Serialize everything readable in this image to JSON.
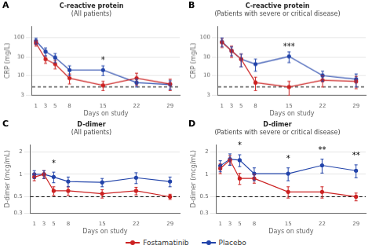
{
  "chart_data": [
    {
      "type": "line",
      "panel_label": "A",
      "title": "C-reactive protein",
      "subtitle": "(All patients)",
      "xlabel": "Days on study",
      "ylabel": "CRP (mg/L)",
      "x": [
        1,
        3,
        5,
        8,
        15,
        22,
        29
      ],
      "series": [
        {
          "name": "Fostamatinib",
          "color": "#cc2222",
          "values": [
            72,
            27,
            20,
            8.5,
            5.5,
            8.5,
            6.0
          ],
          "errors": [
            12,
            6,
            5,
            2.5,
            1.5,
            3,
            2
          ]
        },
        {
          "name": "Placebo",
          "color": "#2244aa",
          "values": [
            82,
            43,
            30,
            14,
            14,
            6.5,
            5.8
          ],
          "errors": [
            15,
            10,
            8,
            4,
            4,
            1.5,
            1.5
          ]
        }
      ],
      "annotations": [
        {
          "x": 15,
          "text": "*"
        }
      ],
      "reference_line": 5,
      "log": "y",
      "xlim": [
        0.2,
        31
      ],
      "xticks": [
        1,
        3,
        5,
        8,
        15,
        22,
        29
      ],
      "ylim": [
        3,
        200
      ],
      "yticks": [
        3,
        10,
        30,
        100
      ],
      "grid": true,
      "legend": "bottom"
    },
    {
      "type": "line",
      "panel_label": "B",
      "title": "C-reactive protein",
      "subtitle": "(Patients with severe or critical disease)",
      "xlabel": "Days on study",
      "ylabel": "CRP (mg/L)",
      "x": [
        1,
        3,
        5,
        8,
        15,
        22,
        29
      ],
      "series": [
        {
          "name": "Fostamatinib",
          "color": "#cc2222",
          "values": [
            75,
            45,
            27,
            6.5,
            5.0,
            7.5,
            7.0
          ],
          "errors": [
            20,
            15,
            10,
            2.5,
            2,
            2.5,
            2.5
          ]
        },
        {
          "name": "Placebo",
          "color": "#2244aa",
          "values": [
            78,
            45,
            27,
            20,
            32,
            10,
            8.0
          ],
          "errors": [
            20,
            12,
            10,
            7,
            10,
            3,
            3
          ]
        }
      ],
      "annotations": [
        {
          "x": 15,
          "text": "***"
        }
      ],
      "reference_line": 5,
      "log": "y",
      "xlim": [
        0.2,
        31
      ],
      "xticks": [
        1,
        3,
        5,
        8,
        15,
        22,
        29
      ],
      "ylim": [
        3,
        200
      ],
      "yticks": [
        3,
        10,
        30,
        100
      ],
      "grid": true,
      "legend": "bottom"
    },
    {
      "type": "line",
      "panel_label": "C",
      "title": "D-dimer",
      "subtitle": "(All patients)",
      "xlabel": "Days on study",
      "ylabel": "D-dimer (mcg/mL)",
      "x": [
        1,
        3,
        5,
        8,
        15,
        22,
        29
      ],
      "series": [
        {
          "name": "Fostamatinib",
          "color": "#cc2222",
          "values": [
            0.92,
            1.0,
            0.6,
            0.6,
            0.55,
            0.6,
            0.5
          ],
          "errors": [
            0.1,
            0.12,
            0.08,
            0.08,
            0.07,
            0.07,
            0.04
          ]
        },
        {
          "name": "Placebo",
          "color": "#2244aa",
          "values": [
            1.0,
            1.0,
            0.92,
            0.8,
            0.78,
            0.9,
            0.8
          ],
          "errors": [
            0.12,
            0.12,
            0.15,
            0.12,
            0.1,
            0.15,
            0.12
          ]
        }
      ],
      "annotations": [
        {
          "x": 5,
          "text": "*"
        }
      ],
      "reference_line": 0.5,
      "log": "y",
      "xlim": [
        0.2,
        31
      ],
      "xticks": [
        1,
        3,
        5,
        8,
        15,
        22,
        29
      ],
      "ylim": [
        0.3,
        2.5
      ],
      "yticks": [
        0.3,
        0.5,
        1,
        2
      ],
      "grid": true,
      "legend": "bottom"
    },
    {
      "type": "line",
      "panel_label": "D",
      "title": "D-dimer",
      "subtitle": "(Patients with severe or critical disease)",
      "xlabel": "Days on study",
      "ylabel": "D-dimer (mcg/mL)",
      "x": [
        1,
        3,
        5,
        8,
        15,
        22,
        29
      ],
      "series": [
        {
          "name": "Fostamatinib",
          "color": "#cc2222",
          "values": [
            1.2,
            1.55,
            0.88,
            0.88,
            0.58,
            0.58,
            0.5
          ],
          "errors": [
            0.18,
            0.22,
            0.15,
            0.12,
            0.1,
            0.1,
            0.06
          ]
        },
        {
          "name": "Placebo",
          "color": "#2244aa",
          "values": [
            1.3,
            1.6,
            1.55,
            1.02,
            1.02,
            1.32,
            1.12
          ],
          "errors": [
            0.22,
            0.28,
            0.28,
            0.2,
            0.2,
            0.28,
            0.22
          ]
        }
      ],
      "annotations": [
        {
          "x": 5,
          "text": "*"
        },
        {
          "x": 15,
          "text": "*"
        },
        {
          "x": 22,
          "text": "**"
        },
        {
          "x": 29,
          "text": "**"
        }
      ],
      "reference_line": 0.5,
      "log": "y",
      "xlim": [
        0.2,
        31
      ],
      "xticks": [
        1,
        3,
        5,
        8,
        15,
        22,
        29
      ],
      "ylim": [
        0.3,
        2.5
      ],
      "yticks": [
        0.3,
        0.5,
        1,
        2
      ],
      "grid": true,
      "legend": "bottom"
    }
  ]
}
